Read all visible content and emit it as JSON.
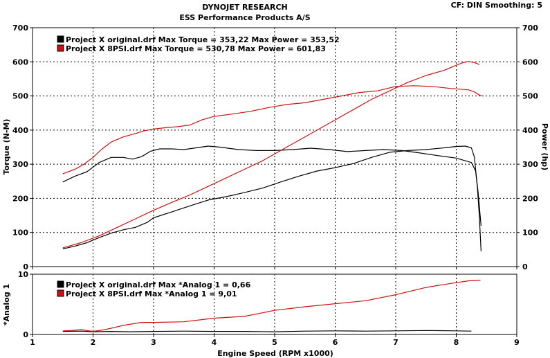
{
  "header": {
    "title": "DYNOJET RESEARCH",
    "subtitle": "ESS Performance Products A/S",
    "settings": "CF: DIN  Smoothing: 5"
  },
  "colors": {
    "original": "#000000",
    "psi": "#cc1111",
    "grid": "#000000"
  },
  "chart_data": [
    {
      "type": "line",
      "xlabel": "Engine Speed (RPM x1000)",
      "ylabel": "Torque (N-M)",
      "ylabel_right": "Power (hp)",
      "xlim": [
        1,
        9
      ],
      "ylim": [
        0,
        700
      ],
      "x_ticks": [
        "1",
        "2",
        "3",
        "4",
        "5",
        "6",
        "7",
        "8",
        "9"
      ],
      "y_ticks": [
        "0",
        "100",
        "200",
        "300",
        "400",
        "500",
        "600",
        "700"
      ],
      "grid": true,
      "legend": [
        {
          "marker_color": "#000000",
          "text": "Project X original.drf Max Torque = 353,22      Max Power = 353,52"
        },
        {
          "marker_color": "#cc1111",
          "text": "Project X 8PSI.drf Max Torque = 530,78     Max Power = 601,83"
        }
      ],
      "series": [
        {
          "name": "Project X original.drf Torque",
          "color": "#000000",
          "points": [
            [
              1.5,
              248
            ],
            [
              1.7,
              265
            ],
            [
              1.9,
              278
            ],
            [
              2.1,
              305
            ],
            [
              2.3,
              320
            ],
            [
              2.5,
              320
            ],
            [
              2.65,
              315
            ],
            [
              2.8,
              322
            ],
            [
              2.95,
              338
            ],
            [
              3.1,
              345
            ],
            [
              3.3,
              345
            ],
            [
              3.5,
              343
            ],
            [
              3.7,
              348
            ],
            [
              3.9,
              353
            ],
            [
              4.1,
              350
            ],
            [
              4.4,
              343
            ],
            [
              4.7,
              340
            ],
            [
              5.0,
              340
            ],
            [
              5.3,
              343
            ],
            [
              5.6,
              347
            ],
            [
              5.9,
              343
            ],
            [
              6.2,
              337
            ],
            [
              6.5,
              340
            ],
            [
              6.8,
              343
            ],
            [
              7.1,
              340
            ],
            [
              7.4,
              333
            ],
            [
              7.7,
              325
            ],
            [
              8.0,
              318
            ],
            [
              8.15,
              310
            ],
            [
              8.25,
              305
            ],
            [
              8.32,
              280
            ],
            [
              8.36,
              220
            ],
            [
              8.39,
              160
            ],
            [
              8.41,
              120
            ]
          ]
        },
        {
          "name": "Project X original.drf Power",
          "color": "#000000",
          "points": [
            [
              1.5,
              52
            ],
            [
              1.7,
              60
            ],
            [
              1.9,
              70
            ],
            [
              2.1,
              85
            ],
            [
              2.3,
              98
            ],
            [
              2.5,
              108
            ],
            [
              2.7,
              115
            ],
            [
              2.9,
              130
            ],
            [
              3.0,
              143
            ],
            [
              3.3,
              160
            ],
            [
              3.6,
              178
            ],
            [
              3.9,
              195
            ],
            [
              4.2,
              205
            ],
            [
              4.5,
              217
            ],
            [
              4.8,
              230
            ],
            [
              5.1,
              248
            ],
            [
              5.4,
              265
            ],
            [
              5.7,
              280
            ],
            [
              6.0,
              290
            ],
            [
              6.3,
              302
            ],
            [
              6.6,
              320
            ],
            [
              6.9,
              335
            ],
            [
              7.2,
              340
            ],
            [
              7.5,
              343
            ],
            [
              7.8,
              348
            ],
            [
              8.0,
              352
            ],
            [
              8.15,
              353
            ],
            [
              8.25,
              348
            ],
            [
              8.3,
              320
            ],
            [
              8.35,
              230
            ],
            [
              8.38,
              150
            ],
            [
              8.41,
              45
            ]
          ]
        },
        {
          "name": "Project X 8PSI.drf Torque",
          "color": "#cc1111",
          "points": [
            [
              1.5,
              272
            ],
            [
              1.7,
              285
            ],
            [
              1.85,
              300
            ],
            [
              2.0,
              320
            ],
            [
              2.15,
              345
            ],
            [
              2.3,
              365
            ],
            [
              2.5,
              380
            ],
            [
              2.7,
              390
            ],
            [
              2.85,
              398
            ],
            [
              3.0,
              403
            ],
            [
              3.2,
              407
            ],
            [
              3.4,
              410
            ],
            [
              3.6,
              415
            ],
            [
              3.8,
              430
            ],
            [
              4.0,
              440
            ],
            [
              4.3,
              447
            ],
            [
              4.6,
              455
            ],
            [
              4.9,
              466
            ],
            [
              5.2,
              475
            ],
            [
              5.5,
              480
            ],
            [
              5.8,
              490
            ],
            [
              6.1,
              500
            ],
            [
              6.4,
              510
            ],
            [
              6.7,
              515
            ],
            [
              7.0,
              528
            ],
            [
              7.3,
              530
            ],
            [
              7.6,
              528
            ],
            [
              7.9,
              522
            ],
            [
              8.2,
              518
            ],
            [
              8.3,
              512
            ],
            [
              8.38,
              503
            ],
            [
              8.42,
              500
            ]
          ]
        },
        {
          "name": "Project X 8PSI.drf Power",
          "color": "#cc1111",
          "points": [
            [
              1.5,
              55
            ],
            [
              1.8,
              70
            ],
            [
              2.1,
              90
            ],
            [
              2.4,
              115
            ],
            [
              2.7,
              140
            ],
            [
              3.0,
              165
            ],
            [
              3.3,
              188
            ],
            [
              3.6,
              210
            ],
            [
              3.9,
              235
            ],
            [
              4.2,
              260
            ],
            [
              4.5,
              285
            ],
            [
              4.8,
              310
            ],
            [
              5.1,
              340
            ],
            [
              5.4,
              370
            ],
            [
              5.7,
              400
            ],
            [
              6.0,
              430
            ],
            [
              6.3,
              460
            ],
            [
              6.6,
              490
            ],
            [
              6.9,
              515
            ],
            [
              7.2,
              540
            ],
            [
              7.5,
              560
            ],
            [
              7.8,
              575
            ],
            [
              8.0,
              590
            ],
            [
              8.1,
              597
            ],
            [
              8.2,
              601
            ],
            [
              8.3,
              598
            ],
            [
              8.38,
              592
            ]
          ]
        }
      ]
    },
    {
      "type": "line",
      "ylabel": "*Analog 1",
      "xlim": [
        1,
        9
      ],
      "ylim": [
        0,
        10
      ],
      "y_ticks": [
        "0",
        "10"
      ],
      "grid": true,
      "legend": [
        {
          "marker_color": "#000000",
          "text": "Project X original.drf Max *Analog 1 = 0,66"
        },
        {
          "marker_color": "#cc1111",
          "text": "Project X 8PSI.drf Max *Analog 1 = 9,01"
        }
      ],
      "series": [
        {
          "name": "Project X original.drf *Analog 1",
          "color": "#000000",
          "points": [
            [
              1.5,
              0.5
            ],
            [
              1.8,
              0.55
            ],
            [
              2.0,
              0.45
            ],
            [
              2.3,
              0.5
            ],
            [
              2.6,
              0.45
            ],
            [
              3.0,
              0.5
            ],
            [
              3.5,
              0.55
            ],
            [
              4.0,
              0.5
            ],
            [
              4.5,
              0.5
            ],
            [
              5.0,
              0.45
            ],
            [
              5.5,
              0.55
            ],
            [
              6.0,
              0.6
            ],
            [
              6.5,
              0.55
            ],
            [
              7.0,
              0.6
            ],
            [
              7.5,
              0.66
            ],
            [
              8.0,
              0.6
            ],
            [
              8.25,
              0.55
            ]
          ]
        },
        {
          "name": "Project X 8PSI.drf *Analog 1",
          "color": "#cc1111",
          "points": [
            [
              1.5,
              0.6
            ],
            [
              1.7,
              0.7
            ],
            [
              1.8,
              0.8
            ],
            [
              2.0,
              0.5
            ],
            [
              2.2,
              0.8
            ],
            [
              2.5,
              1.5
            ],
            [
              2.8,
              2.0
            ],
            [
              3.0,
              2.0
            ],
            [
              3.5,
              2.1
            ],
            [
              4.0,
              2.7
            ],
            [
              4.5,
              3.0
            ],
            [
              5.0,
              4.0
            ],
            [
              5.5,
              4.6
            ],
            [
              6.0,
              5.1
            ],
            [
              6.5,
              5.6
            ],
            [
              7.0,
              6.6
            ],
            [
              7.5,
              7.8
            ],
            [
              7.8,
              8.3
            ],
            [
              8.0,
              8.6
            ],
            [
              8.2,
              8.9
            ],
            [
              8.4,
              9.01
            ]
          ]
        }
      ]
    }
  ]
}
